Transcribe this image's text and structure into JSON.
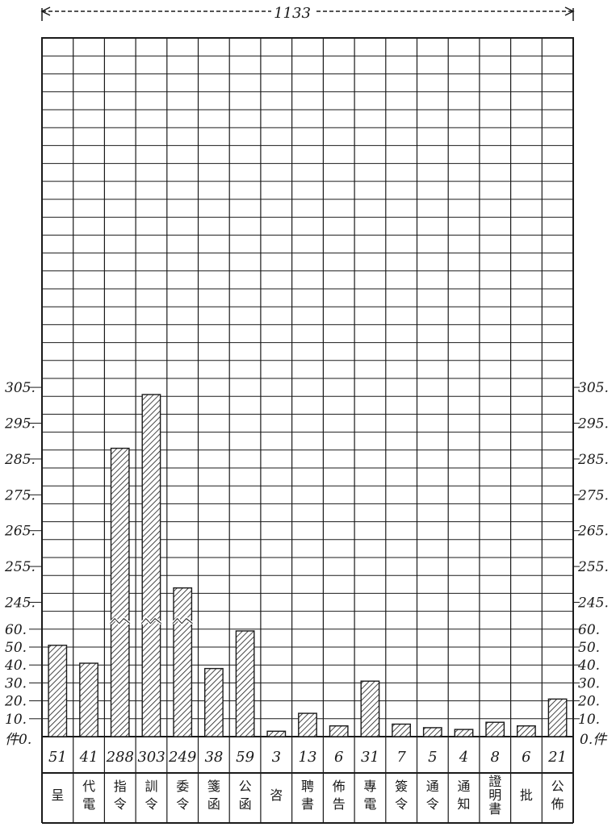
{
  "chart_data": {
    "type": "bar",
    "title": "1133",
    "categories": [
      "呈",
      "代電",
      "指令",
      "訓令",
      "委令",
      "箋函",
      "公函",
      "咨",
      "聘書",
      "佈告",
      "專電",
      "簽令",
      "通令",
      "通知",
      "證明書",
      "批",
      "公佈"
    ],
    "values": [
      51,
      41,
      288,
      303,
      249,
      38,
      59,
      3,
      13,
      6,
      31,
      7,
      5,
      4,
      8,
      6,
      21
    ],
    "count_labels": [
      "51",
      "41",
      "288",
      "303",
      "249",
      "38",
      "59",
      "3",
      "13",
      "6",
      "31",
      "7",
      "5",
      "4",
      "8",
      "6",
      "21"
    ],
    "y_ticks": [
      "305.",
      "295.",
      "285.",
      "275.",
      "265.",
      "255.",
      "245.",
      "60.",
      "50.",
      "40.",
      "30.",
      "20.",
      "10."
    ],
    "y_zero_left": "件0.",
    "y_zero_right": "0.件",
    "axis_break": {
      "from": 65,
      "to": 240
    },
    "ylim": [
      0,
      305
    ],
    "grid": true
  },
  "colors": {
    "ink": "#1a1a1a",
    "hatch": "#1a1a1a",
    "paper": "#ffffff"
  }
}
